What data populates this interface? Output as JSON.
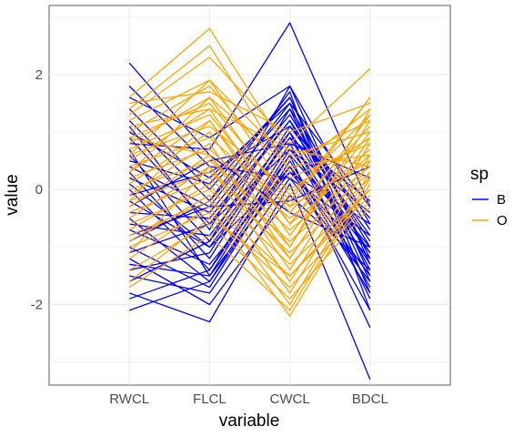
{
  "chart_data": {
    "type": "line",
    "subtype": "parallel-coordinates",
    "title": "",
    "xlabel": "variable",
    "ylabel": "value",
    "categories": [
      "RWCL",
      "FLCL",
      "CWCL",
      "BDCL"
    ],
    "ylim": [
      -3.4,
      3.2
    ],
    "y_ticks": [
      -2,
      0,
      2
    ],
    "grid": true,
    "legend": {
      "title": "sp",
      "position": "right"
    },
    "colors": {
      "B": "#0000ff",
      "O": "#ffa500"
    },
    "series": [
      {
        "name": "B",
        "lines": [
          [
            2.2,
            0.6,
            -0.4,
            -1.0
          ],
          [
            1.8,
            0.4,
            0.2,
            -0.8
          ],
          [
            1.6,
            0.9,
            1.8,
            -0.6
          ],
          [
            1.2,
            -0.2,
            1.7,
            -2.1
          ],
          [
            1.0,
            0.2,
            1.5,
            -1.8
          ],
          [
            0.9,
            -0.6,
            1.2,
            -1.4
          ],
          [
            0.8,
            0.7,
            2.9,
            -0.3
          ],
          [
            0.6,
            -0.9,
            1.4,
            -1.6
          ],
          [
            0.5,
            0.1,
            1.6,
            -1.2
          ],
          [
            0.3,
            -1.2,
            1.0,
            -1.9
          ],
          [
            0.2,
            -0.4,
            1.3,
            -1.0
          ],
          [
            0.0,
            -1.4,
            0.8,
            -1.7
          ],
          [
            -0.1,
            0.3,
            1.1,
            -0.5
          ],
          [
            -0.2,
            -1.0,
            0.9,
            -1.3
          ],
          [
            -0.4,
            -0.5,
            1.2,
            -0.9
          ],
          [
            -0.5,
            -1.6,
            0.6,
            -2.4
          ],
          [
            -0.6,
            -0.8,
            1.0,
            -1.1
          ],
          [
            -0.7,
            -1.3,
            0.4,
            -1.5
          ],
          [
            -0.9,
            -0.2,
            1.4,
            -0.7
          ],
          [
            -1.0,
            -1.7,
            0.5,
            -1.8
          ],
          [
            -1.1,
            -0.6,
            0.7,
            -0.4
          ],
          [
            -1.3,
            -1.5,
            0.3,
            -1.2
          ],
          [
            -1.4,
            -1.1,
            1.1,
            -0.8
          ],
          [
            -1.5,
            -1.8,
            0.2,
            -1.6
          ],
          [
            -1.6,
            -0.9,
            0.9,
            -0.2
          ],
          [
            -1.8,
            -2.3,
            0.1,
            -3.3
          ],
          [
            -1.9,
            -1.4,
            0.6,
            -1.0
          ],
          [
            -2.1,
            -1.6,
            0.4,
            -2.1
          ],
          [
            0.4,
            -0.3,
            -0.2,
            0.4
          ],
          [
            0.1,
            -1.0,
            0.3,
            -0.6
          ],
          [
            -0.3,
            0.5,
            0.8,
            0.2
          ],
          [
            1.4,
            0.0,
            1.6,
            -1.5
          ],
          [
            0.7,
            -1.5,
            0.7,
            -1.1
          ],
          [
            -0.8,
            -0.3,
            1.5,
            -0.3
          ],
          [
            1.1,
            -0.7,
            1.8,
            -1.3
          ],
          [
            -1.2,
            -2.0,
            -0.1,
            -1.4
          ]
        ]
      },
      {
        "name": "O",
        "lines": [
          [
            1.6,
            2.8,
            0.6,
            1.0
          ],
          [
            1.4,
            2.5,
            0.3,
            1.4
          ],
          [
            1.3,
            2.3,
            0.8,
            2.1
          ],
          [
            1.2,
            1.9,
            0.5,
            1.2
          ],
          [
            1.0,
            1.8,
            0.2,
            0.8
          ],
          [
            0.9,
            1.5,
            -0.2,
            1.6
          ],
          [
            0.8,
            1.6,
            0.4,
            0.6
          ],
          [
            0.7,
            1.3,
            -0.4,
            1.1
          ],
          [
            0.6,
            1.1,
            0.0,
            0.9
          ],
          [
            0.5,
            1.4,
            -0.6,
            1.3
          ],
          [
            0.4,
            0.9,
            -0.3,
            0.5
          ],
          [
            0.3,
            1.2,
            -0.8,
            1.0
          ],
          [
            0.2,
            0.7,
            -0.5,
            0.7
          ],
          [
            0.1,
            1.0,
            -1.0,
            1.2
          ],
          [
            0.0,
            0.5,
            -0.7,
            0.4
          ],
          [
            -0.1,
            0.8,
            -1.2,
            0.9
          ],
          [
            -0.2,
            0.3,
            -0.9,
            0.3
          ],
          [
            -0.3,
            0.6,
            -1.4,
            0.8
          ],
          [
            -0.4,
            0.2,
            -1.1,
            0.2
          ],
          [
            -0.5,
            0.4,
            -1.6,
            0.6
          ],
          [
            -0.6,
            0.0,
            -1.3,
            0.0
          ],
          [
            -0.7,
            0.1,
            -1.8,
            0.5
          ],
          [
            -0.8,
            -0.2,
            -1.5,
            -0.1
          ],
          [
            -0.9,
            -0.1,
            -2.0,
            0.3
          ],
          [
            -1.0,
            -0.4,
            -1.7,
            -0.2
          ],
          [
            -1.2,
            -0.3,
            -2.2,
            0.1
          ],
          [
            -1.4,
            -0.6,
            -1.9,
            -0.3
          ],
          [
            -1.6,
            -0.5,
            -1.5,
            0.0
          ],
          [
            -1.7,
            -0.8,
            -2.1,
            0.2
          ],
          [
            1.5,
            1.7,
            1.0,
            1.5
          ],
          [
            1.1,
            1.4,
            0.7,
            0.4
          ],
          [
            0.6,
            1.9,
            -0.1,
            1.3
          ],
          [
            -0.2,
            1.2,
            -0.6,
            0.6
          ],
          [
            0.9,
            0.6,
            -1.0,
            1.4
          ],
          [
            -1.1,
            0.4,
            -1.2,
            0.9
          ],
          [
            0.3,
            1.6,
            -0.3,
            1.6
          ]
        ]
      }
    ]
  }
}
